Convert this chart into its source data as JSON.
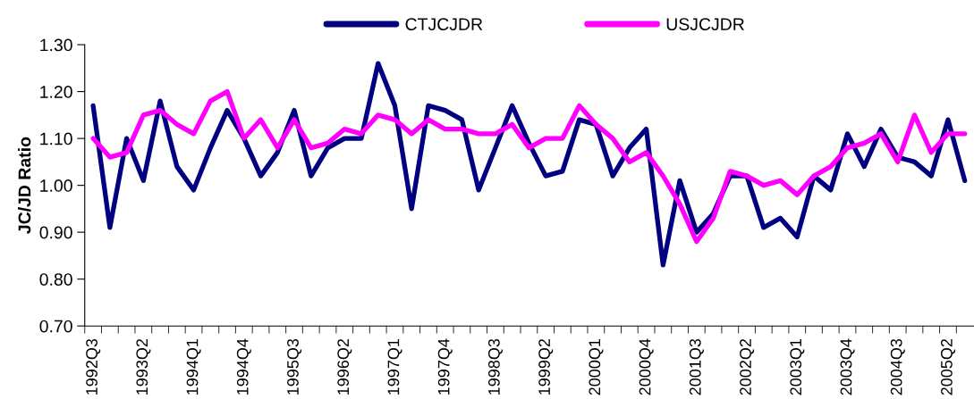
{
  "chart_data": {
    "type": "line",
    "ylabel": "JC/JD Ratio",
    "categories": [
      "1992Q3",
      null,
      null,
      "1993Q2",
      null,
      null,
      "1994Q1",
      null,
      null,
      "1994Q4",
      null,
      null,
      "1995Q3",
      null,
      null,
      "1996Q2",
      null,
      null,
      "1997Q1",
      null,
      null,
      "1997Q4",
      null,
      null,
      "1998Q3",
      null,
      null,
      "1999Q2",
      null,
      null,
      "2000Q1",
      null,
      null,
      "2000Q4",
      null,
      null,
      "2001Q3",
      null,
      null,
      "2002Q2",
      null,
      null,
      "2003Q1",
      null,
      null,
      "2003Q4",
      null,
      null,
      "2004Q3",
      null,
      null,
      "2005Q2",
      null
    ],
    "series": [
      {
        "name": "CTJCJDR",
        "color": "#000080",
        "values": [
          1.17,
          0.91,
          1.1,
          1.01,
          1.18,
          1.04,
          0.99,
          1.08,
          1.16,
          1.1,
          1.02,
          1.07,
          1.16,
          1.02,
          1.08,
          1.1,
          1.1,
          1.26,
          1.17,
          0.95,
          1.17,
          1.16,
          1.14,
          0.99,
          1.08,
          1.17,
          1.09,
          1.02,
          1.03,
          1.14,
          1.13,
          1.02,
          1.08,
          1.12,
          0.83,
          1.01,
          0.9,
          0.94,
          1.02,
          1.02,
          0.91,
          0.93,
          0.89,
          1.02,
          0.99,
          1.11,
          1.04,
          1.12,
          1.06,
          1.05,
          1.02,
          1.14,
          1.01
        ]
      },
      {
        "name": "USJCJDR",
        "color": "#ff00ff",
        "values": [
          1.1,
          1.06,
          1.07,
          1.15,
          1.16,
          1.13,
          1.11,
          1.18,
          1.2,
          1.1,
          1.14,
          1.08,
          1.14,
          1.08,
          1.09,
          1.12,
          1.11,
          1.15,
          1.14,
          1.11,
          1.14,
          1.12,
          1.12,
          1.11,
          1.11,
          1.13,
          1.08,
          1.1,
          1.1,
          1.17,
          1.13,
          1.1,
          1.05,
          1.07,
          1.02,
          0.96,
          0.88,
          0.93,
          1.03,
          1.02,
          1.0,
          1.01,
          0.98,
          1.02,
          1.04,
          1.08,
          1.09,
          1.11,
          1.05,
          1.15,
          1.07,
          1.11,
          1.11
        ]
      }
    ],
    "ylim": [
      0.7,
      1.3
    ],
    "yticks": [
      {
        "value": 0.7,
        "label": "0.70"
      },
      {
        "value": 0.8,
        "label": "0.80"
      },
      {
        "value": 0.9,
        "label": "0.90"
      },
      {
        "value": 1.0,
        "label": "1.00"
      },
      {
        "value": 1.1,
        "label": "1.10"
      },
      {
        "value": 1.2,
        "label": "1.20"
      },
      {
        "value": 1.3,
        "label": "1.30"
      }
    ],
    "grid": false,
    "legend": "top",
    "marker": "none",
    "line_style": "solid"
  }
}
